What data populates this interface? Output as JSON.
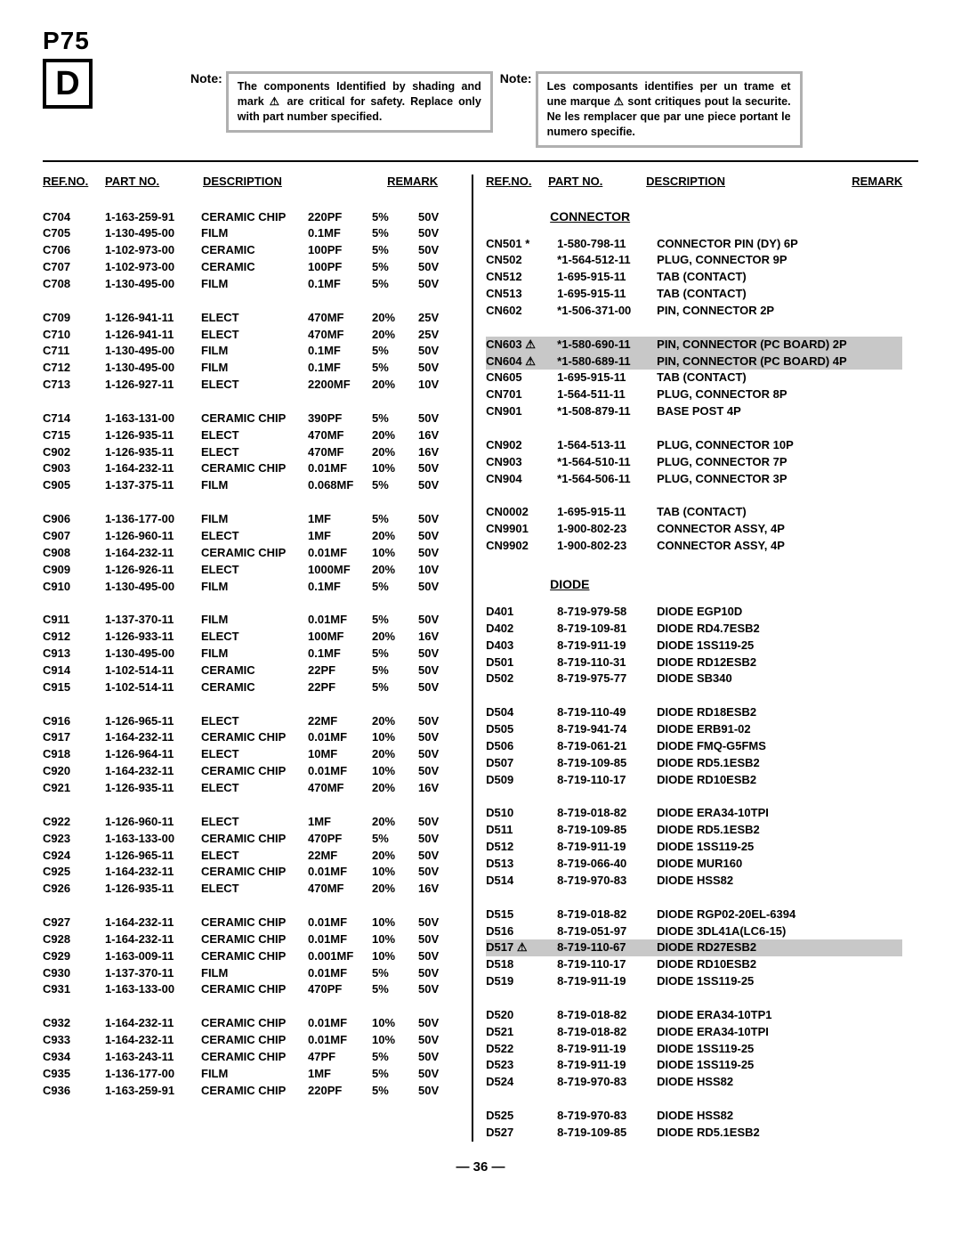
{
  "page_code": "P75",
  "d_letter": "D",
  "note_label": "Note:",
  "note_en": "The components Identified by shading and mark ⚠ are critical for safety. Replace only with part number specified.",
  "note_fr": "Les composants identifies per un trame et une marque ⚠ sont critiques pout la securite. Ne les remplacer que par une piece portant le numero specifie.",
  "headers": {
    "ref": "REF.NO.",
    "part": "PART NO.",
    "desc": "DESCRIPTION",
    "remark": "REMARK"
  },
  "sections": {
    "connector": "CONNECTOR",
    "diode": "DIODE"
  },
  "page_num": "— 36 —",
  "left": [
    [
      [
        "C704",
        "1-163-259-91",
        "CERAMIC CHIP",
        "220PF",
        "5%",
        "50V"
      ],
      [
        "C705",
        "1-130-495-00",
        "FILM",
        "0.1MF",
        "5%",
        "50V"
      ],
      [
        "C706",
        "1-102-973-00",
        "CERAMIC",
        "100PF",
        "5%",
        "50V"
      ],
      [
        "C707",
        "1-102-973-00",
        "CERAMIC",
        "100PF",
        "5%",
        "50V"
      ],
      [
        "C708",
        "1-130-495-00",
        "FILM",
        "0.1MF",
        "5%",
        "50V"
      ]
    ],
    [
      [
        "C709",
        "1-126-941-11",
        "ELECT",
        "470MF",
        "20%",
        "25V"
      ],
      [
        "C710",
        "1-126-941-11",
        "ELECT",
        "470MF",
        "20%",
        "25V"
      ],
      [
        "C711",
        "1-130-495-00",
        "FILM",
        "0.1MF",
        "5%",
        "50V"
      ],
      [
        "C712",
        "1-130-495-00",
        "FILM",
        "0.1MF",
        "5%",
        "50V"
      ],
      [
        "C713",
        "1-126-927-11",
        "ELECT",
        "2200MF",
        "20%",
        "10V"
      ]
    ],
    [
      [
        "C714",
        "1-163-131-00",
        "CERAMIC CHIP",
        "390PF",
        "5%",
        "50V"
      ],
      [
        "C715",
        "1-126-935-11",
        "ELECT",
        "470MF",
        "20%",
        "16V"
      ],
      [
        "C902",
        "1-126-935-11",
        "ELECT",
        "470MF",
        "20%",
        "16V"
      ],
      [
        "C903",
        "1-164-232-11",
        "CERAMIC CHIP",
        "0.01MF",
        "10%",
        "50V"
      ],
      [
        "C905",
        "1-137-375-11",
        "FILM",
        "0.068MF",
        "5%",
        "50V"
      ]
    ],
    [
      [
        "C906",
        "1-136-177-00",
        "FILM",
        "1MF",
        "5%",
        "50V"
      ],
      [
        "C907",
        "1-126-960-11",
        "ELECT",
        "1MF",
        "20%",
        "50V"
      ],
      [
        "C908",
        "1-164-232-11",
        "CERAMIC CHIP",
        "0.01MF",
        "10%",
        "50V"
      ],
      [
        "C909",
        "1-126-926-11",
        "ELECT",
        "1000MF",
        "20%",
        "10V"
      ],
      [
        "C910",
        "1-130-495-00",
        "FILM",
        "0.1MF",
        "5%",
        "50V"
      ]
    ],
    [
      [
        "C911",
        "1-137-370-11",
        "FILM",
        "0.01MF",
        "5%",
        "50V"
      ],
      [
        "C912",
        "1-126-933-11",
        "ELECT",
        "100MF",
        "20%",
        "16V"
      ],
      [
        "C913",
        "1-130-495-00",
        "FILM",
        "0.1MF",
        "5%",
        "50V"
      ],
      [
        "C914",
        "1-102-514-11",
        "CERAMIC",
        "22PF",
        "5%",
        "50V"
      ],
      [
        "C915",
        "1-102-514-11",
        "CERAMIC",
        "22PF",
        "5%",
        "50V"
      ]
    ],
    [
      [
        "C916",
        "1-126-965-11",
        "ELECT",
        "22MF",
        "20%",
        "50V"
      ],
      [
        "C917",
        "1-164-232-11",
        "CERAMIC CHIP",
        "0.01MF",
        "10%",
        "50V"
      ],
      [
        "C918",
        "1-126-964-11",
        "ELECT",
        "10MF",
        "20%",
        "50V"
      ],
      [
        "C920",
        "1-164-232-11",
        "CERAMIC CHIP",
        "0.01MF",
        "10%",
        "50V"
      ],
      [
        "C921",
        "1-126-935-11",
        "ELECT",
        "470MF",
        "20%",
        "16V"
      ]
    ],
    [
      [
        "C922",
        "1-126-960-11",
        "ELECT",
        "1MF",
        "20%",
        "50V"
      ],
      [
        "C923",
        "1-163-133-00",
        "CERAMIC CHIP",
        "470PF",
        "5%",
        "50V"
      ],
      [
        "C924",
        "1-126-965-11",
        "ELECT",
        "22MF",
        "20%",
        "50V"
      ],
      [
        "C925",
        "1-164-232-11",
        "CERAMIC CHIP",
        "0.01MF",
        "10%",
        "50V"
      ],
      [
        "C926",
        "1-126-935-11",
        "ELECT",
        "470MF",
        "20%",
        "16V"
      ]
    ],
    [
      [
        "C927",
        "1-164-232-11",
        "CERAMIC CHIP",
        "0.01MF",
        "10%",
        "50V"
      ],
      [
        "C928",
        "1-164-232-11",
        "CERAMIC CHIP",
        "0.01MF",
        "10%",
        "50V"
      ],
      [
        "C929",
        "1-163-009-11",
        "CERAMIC CHIP",
        "0.001MF",
        "10%",
        "50V"
      ],
      [
        "C930",
        "1-137-370-11",
        "FILM",
        "0.01MF",
        "5%",
        "50V"
      ],
      [
        "C931",
        "1-163-133-00",
        "CERAMIC CHIP",
        "470PF",
        "5%",
        "50V"
      ]
    ],
    [
      [
        "C932",
        "1-164-232-11",
        "CERAMIC CHIP",
        "0.01MF",
        "10%",
        "50V"
      ],
      [
        "C933",
        "1-164-232-11",
        "CERAMIC CHIP",
        "0.01MF",
        "10%",
        "50V"
      ],
      [
        "C934",
        "1-163-243-11",
        "CERAMIC CHIP",
        "47PF",
        "5%",
        "50V"
      ],
      [
        "C935",
        "1-136-177-00",
        "FILM",
        "1MF",
        "5%",
        "50V"
      ],
      [
        "C936",
        "1-163-259-91",
        "CERAMIC CHIP",
        "220PF",
        "5%",
        "50V"
      ]
    ]
  ],
  "connectors": [
    {
      "group": [
        [
          "CN501 *",
          "1-580-798-11",
          "CONNECTOR PIN (DY) 6P",
          false
        ],
        [
          "CN502",
          "*1-564-512-11",
          "PLUG, CONNECTOR 9P",
          false
        ],
        [
          "CN512",
          "1-695-915-11",
          "TAB (CONTACT)",
          false
        ],
        [
          "CN513",
          "1-695-915-11",
          "TAB (CONTACT)",
          false
        ],
        [
          "CN602",
          "*1-506-371-00",
          "PIN, CONNECTOR 2P",
          false
        ]
      ]
    },
    {
      "group": [
        [
          "CN603 ⚠",
          "*1-580-690-11",
          "PIN, CONNECTOR (PC BOARD) 2P",
          true
        ],
        [
          "CN604 ⚠",
          "*1-580-689-11",
          "PIN, CONNECTOR (PC BOARD) 4P",
          true
        ],
        [
          "CN605",
          "1-695-915-11",
          "TAB (CONTACT)",
          false
        ],
        [
          "CN701",
          "1-564-511-11",
          "PLUG, CONNECTOR 8P",
          false
        ],
        [
          "CN901",
          "*1-508-879-11",
          "BASE POST 4P",
          false
        ]
      ]
    },
    {
      "group": [
        [
          "CN902",
          "1-564-513-11",
          "PLUG, CONNECTOR 10P",
          false
        ],
        [
          "CN903",
          "*1-564-510-11",
          "PLUG, CONNECTOR 7P",
          false
        ],
        [
          "CN904",
          "*1-564-506-11",
          "PLUG, CONNECTOR 3P",
          false
        ]
      ]
    },
    {
      "group": [
        [
          "CN0002",
          "1-695-915-11",
          "TAB (CONTACT)",
          false
        ],
        [
          "CN9901",
          "1-900-802-23",
          "CONNECTOR ASSY, 4P",
          false
        ],
        [
          "CN9902",
          "1-900-802-23",
          "CONNECTOR ASSY, 4P",
          false
        ]
      ]
    }
  ],
  "diodes": [
    {
      "group": [
        [
          "D401",
          "8-719-979-58",
          "DIODE EGP10D",
          false
        ],
        [
          "D402",
          "8-719-109-81",
          "DIODE RD4.7ESB2",
          false
        ],
        [
          "D403",
          "8-719-911-19",
          "DIODE 1SS119-25",
          false
        ],
        [
          "D501",
          "8-719-110-31",
          "DIODE RD12ESB2",
          false
        ],
        [
          "D502",
          "8-719-975-77",
          "DIODE SB340",
          false
        ]
      ]
    },
    {
      "group": [
        [
          "D504",
          "8-719-110-49",
          "DIODE RD18ESB2",
          false
        ],
        [
          "D505",
          "8-719-941-74",
          "DIODE ERB91-02",
          false
        ],
        [
          "D506",
          "8-719-061-21",
          "DIODE FMQ-G5FMS",
          false
        ],
        [
          "D507",
          "8-719-109-85",
          "DIODE RD5.1ESB2",
          false
        ],
        [
          "D509",
          "8-719-110-17",
          "DIODE RD10ESB2",
          false
        ]
      ]
    },
    {
      "group": [
        [
          "D510",
          "8-719-018-82",
          "DIODE ERA34-10TPI",
          false
        ],
        [
          "D511",
          "8-719-109-85",
          "DIODE RD5.1ESB2",
          false
        ],
        [
          "D512",
          "8-719-911-19",
          "DIODE 1SS119-25",
          false
        ],
        [
          "D513",
          "8-719-066-40",
          "DIODE MUR160",
          false
        ],
        [
          "D514",
          "8-719-970-83",
          "DIODE HSS82",
          false
        ]
      ]
    },
    {
      "group": [
        [
          "D515",
          "8-719-018-82",
          "DIODE RGP02-20EL-6394",
          false
        ],
        [
          "D516",
          "8-719-051-97",
          "DIODE 3DL41A(LC6-15)",
          false
        ],
        [
          "D517 ⚠",
          "8-719-110-67",
          "DIODE RD27ESB2",
          true
        ],
        [
          "D518",
          "8-719-110-17",
          "DIODE RD10ESB2",
          false
        ],
        [
          "D519",
          "8-719-911-19",
          "DIODE 1SS119-25",
          false
        ]
      ]
    },
    {
      "group": [
        [
          "D520",
          "8-719-018-82",
          "DIODE ERA34-10TP1",
          false
        ],
        [
          "D521",
          "8-719-018-82",
          "DIODE ERA34-10TPI",
          false
        ],
        [
          "D522",
          "8-719-911-19",
          "DIODE 1SS119-25",
          false
        ],
        [
          "D523",
          "8-719-911-19",
          "DIODE 1SS119-25",
          false
        ],
        [
          "D524",
          "8-719-970-83",
          "DIODE HSS82",
          false
        ]
      ]
    },
    {
      "group": [
        [
          "D525",
          "8-719-970-83",
          "DIODE HSS82",
          false
        ],
        [
          "D527",
          "8-719-109-85",
          "DIODE RD5.1ESB2",
          false
        ]
      ]
    }
  ]
}
